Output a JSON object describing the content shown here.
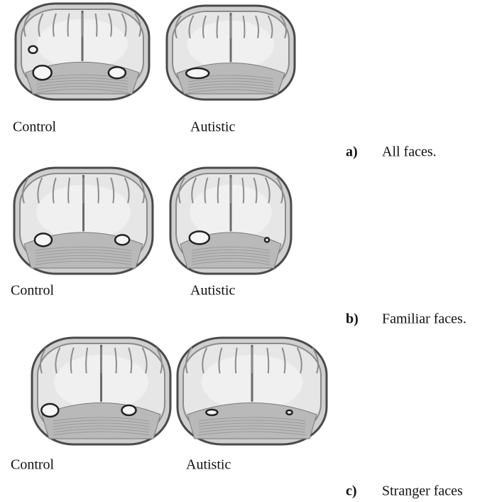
{
  "panels": [
    {
      "left_label": "Control",
      "right_label": "Autistic",
      "letter": "a)",
      "caption": "All faces."
    },
    {
      "left_label": "Control",
      "right_label": "Autistic",
      "letter": "b)",
      "caption": "Familiar faces."
    },
    {
      "left_label": "Control",
      "right_label": "Autistic",
      "letter": "c)",
      "caption": "Stranger faces"
    }
  ]
}
